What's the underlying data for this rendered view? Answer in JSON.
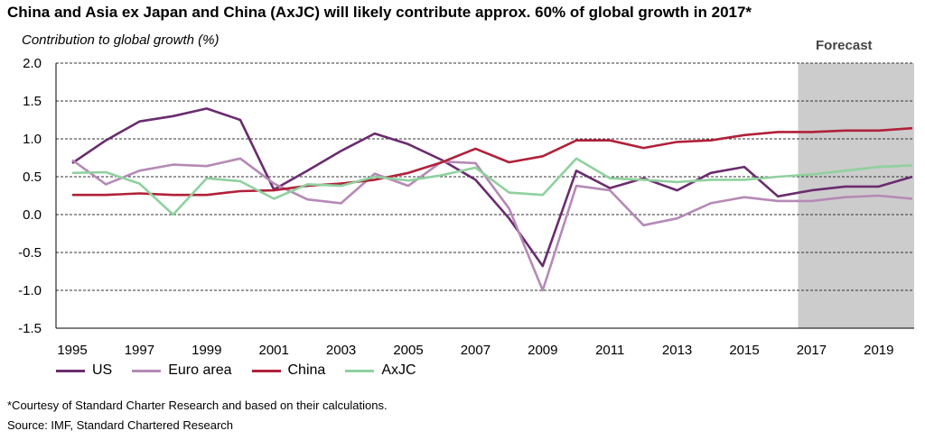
{
  "title": "China and Asia ex Japan and China (AxJC) will likely contribute approx. 60% of global growth in 2017*",
  "footnote": "*Courtesy of Standard Charter Research and based on their calculations.",
  "source": "Source: IMF, Standard Chartered Research",
  "chart_data": {
    "type": "line",
    "ylabel": "Contribution to global growth (%)",
    "xlabel": "",
    "ylim": [
      -1.5,
      2.0
    ],
    "xlim": [
      1995,
      2020
    ],
    "yticks": [
      "2.0",
      "1.5",
      "1.0",
      "0.5",
      "0.0",
      "-0.5",
      "-1.0",
      "-1.5"
    ],
    "xticks": [
      "1995",
      "1997",
      "1999",
      "2001",
      "2003",
      "2005",
      "2007",
      "2009",
      "2011",
      "2013",
      "2015",
      "2017",
      "2019"
    ],
    "grid": "horizontal dashed",
    "legend_position": "bottom",
    "forecast": {
      "label": "Forecast",
      "start": 2016.6,
      "end": 2020.2
    },
    "x": [
      1995,
      1996,
      1997,
      1998,
      1999,
      2000,
      2001,
      2002,
      2003,
      2004,
      2005,
      2006,
      2007,
      2008,
      2009,
      2010,
      2011,
      2012,
      2013,
      2014,
      2015,
      2016,
      2017,
      2018,
      2019,
      2020
    ],
    "series": [
      {
        "name": "US",
        "color": "#6a2c6e",
        "values": [
          0.68,
          0.98,
          1.23,
          1.3,
          1.4,
          1.25,
          0.33,
          0.58,
          0.84,
          1.07,
          0.93,
          0.72,
          0.46,
          -0.05,
          -0.68,
          0.58,
          0.35,
          0.48,
          0.32,
          0.55,
          0.63,
          0.24,
          0.32,
          0.37,
          0.37,
          0.5
        ]
      },
      {
        "name": "Euro area",
        "color": "#b58ab6",
        "values": [
          0.72,
          0.4,
          0.58,
          0.66,
          0.64,
          0.74,
          0.41,
          0.2,
          0.15,
          0.54,
          0.38,
          0.7,
          0.68,
          0.08,
          -1.0,
          0.38,
          0.32,
          -0.14,
          -0.05,
          0.15,
          0.23,
          0.18,
          0.18,
          0.23,
          0.25,
          0.21
        ]
      },
      {
        "name": "China",
        "color": "#b0213a",
        "values": [
          0.26,
          0.26,
          0.28,
          0.26,
          0.26,
          0.31,
          0.32,
          0.38,
          0.41,
          0.46,
          0.55,
          0.69,
          0.87,
          0.69,
          0.77,
          0.98,
          0.98,
          0.88,
          0.96,
          0.98,
          1.05,
          1.09,
          1.09,
          1.11,
          1.11,
          1.14
        ]
      },
      {
        "name": "AxJC",
        "color": "#8fd19e",
        "values": [
          0.55,
          0.56,
          0.41,
          0.0,
          0.48,
          0.44,
          0.21,
          0.4,
          0.38,
          0.5,
          0.45,
          0.52,
          0.62,
          0.29,
          0.26,
          0.74,
          0.48,
          0.46,
          0.43,
          0.46,
          0.46,
          0.5,
          0.53,
          0.58,
          0.63,
          0.65
        ]
      }
    ]
  }
}
